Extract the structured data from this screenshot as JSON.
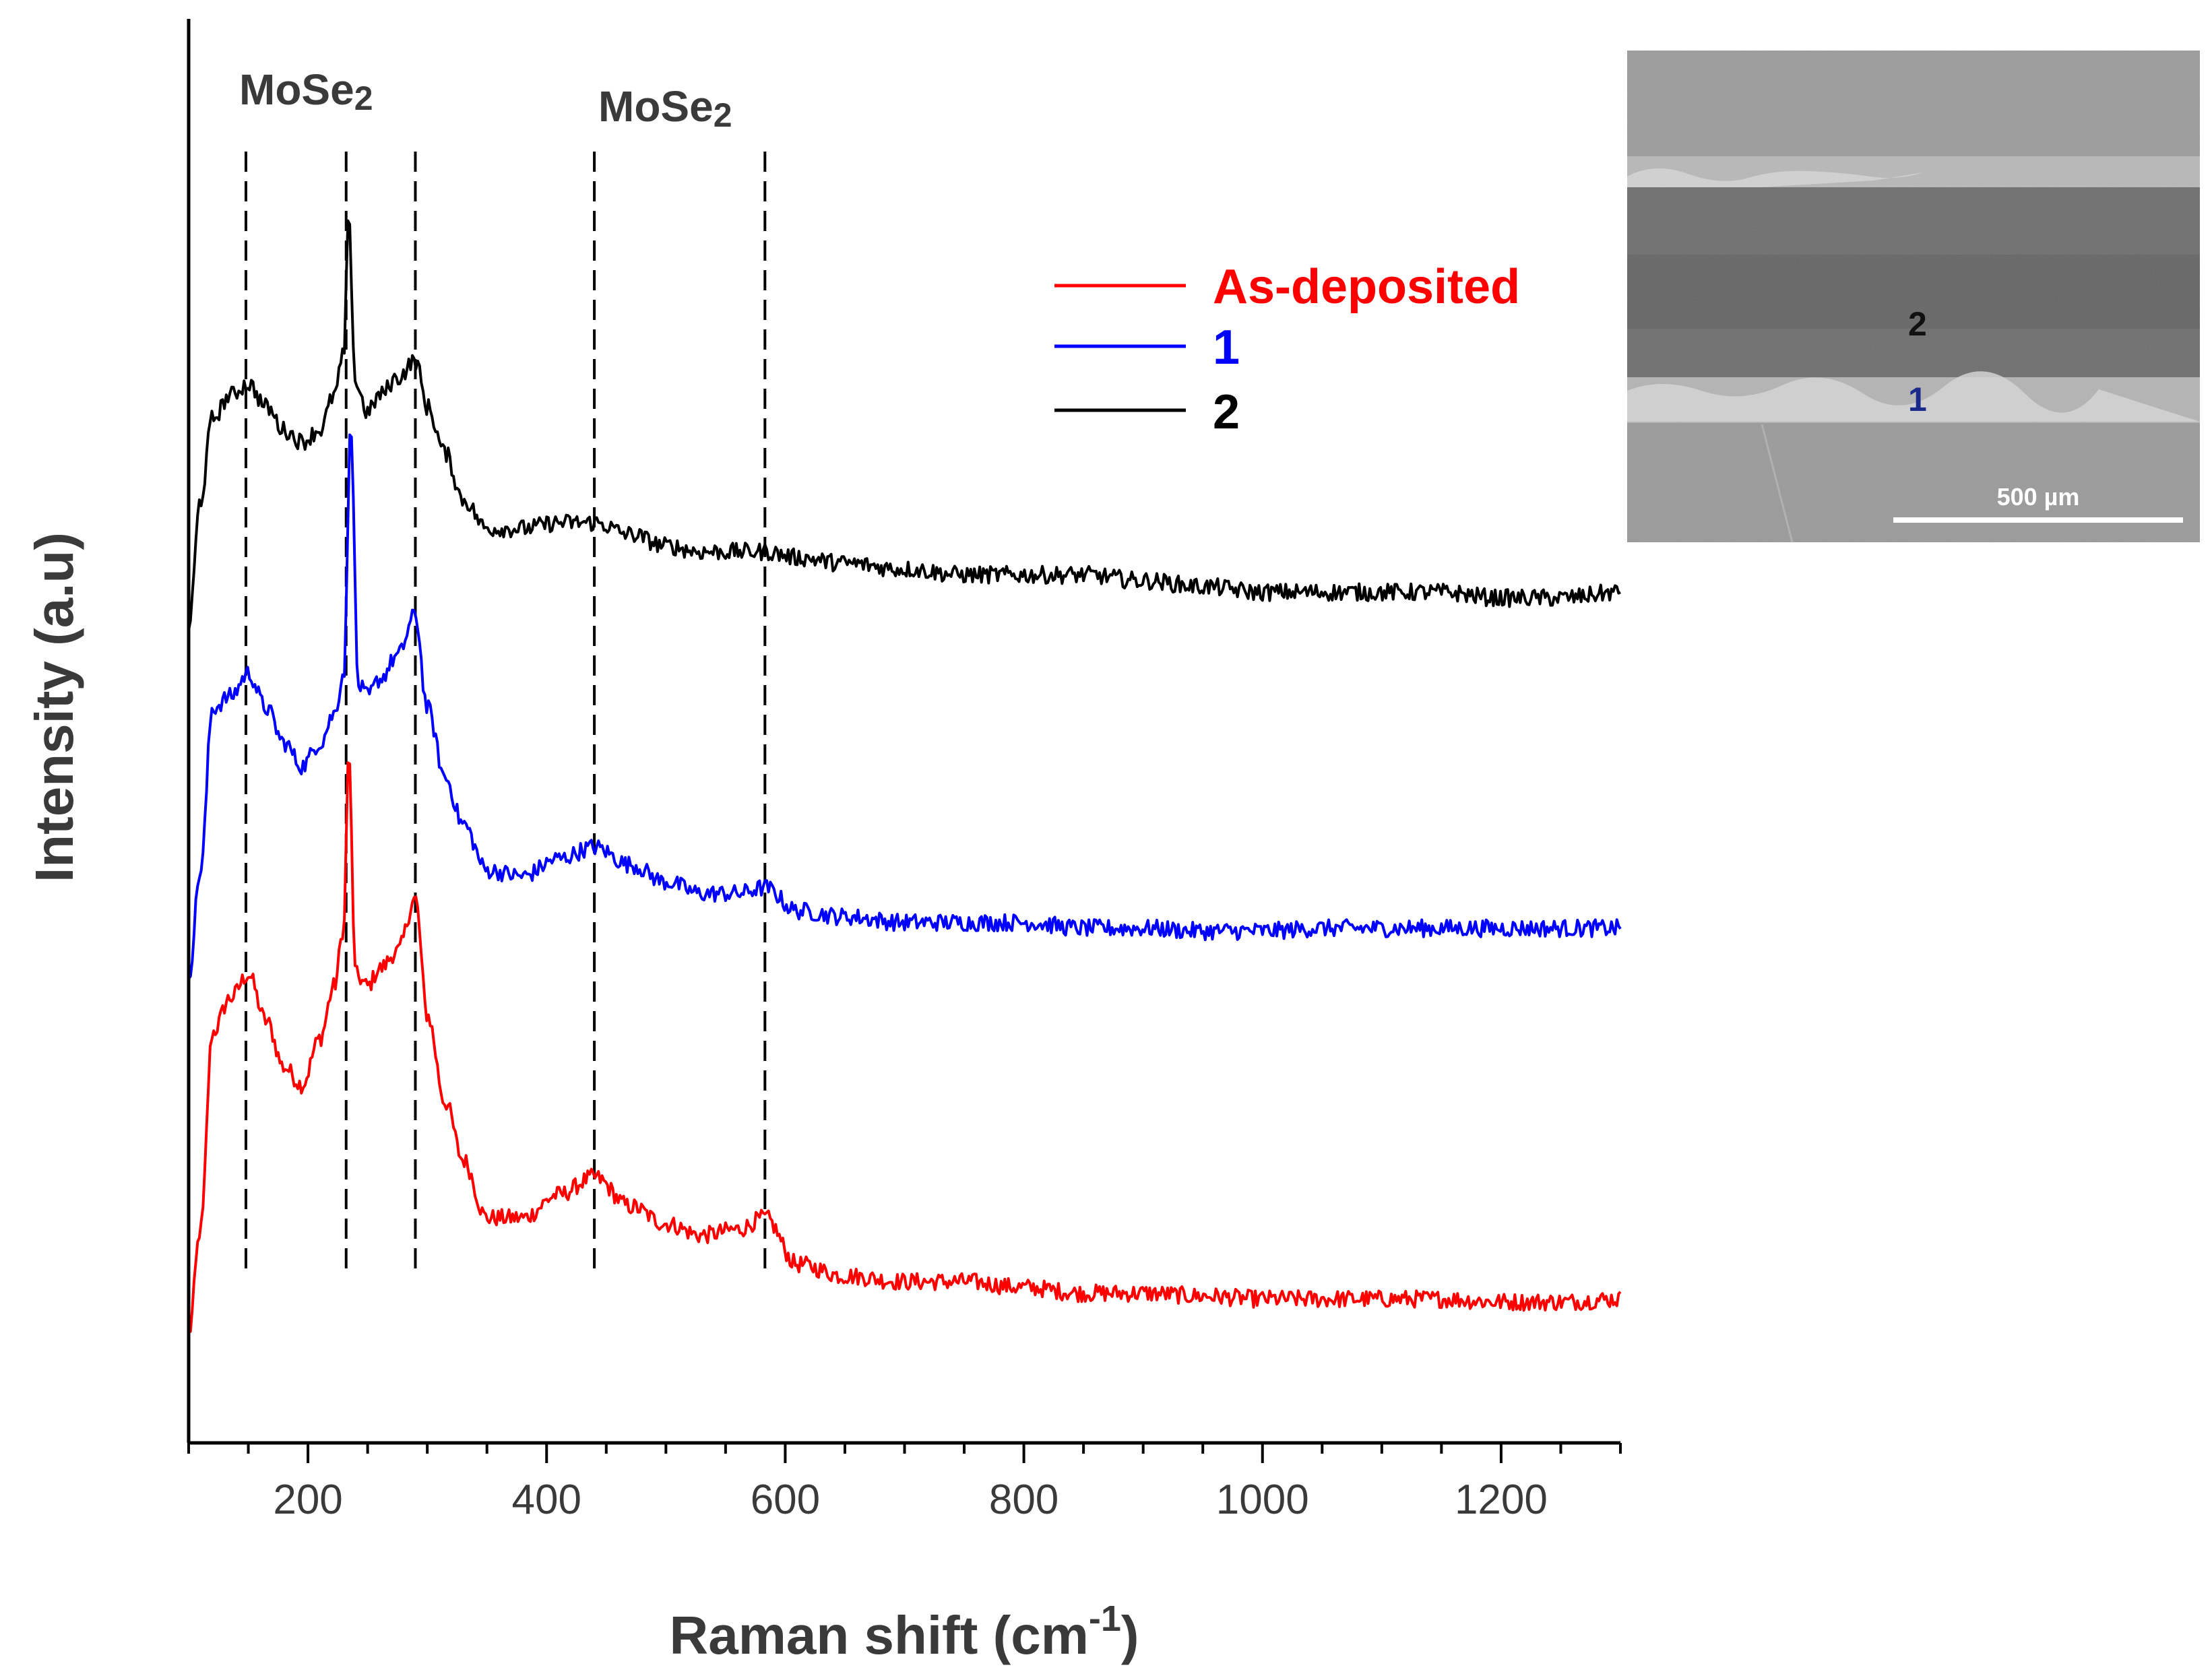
{
  "chart_data": {
    "type": "line",
    "title": "",
    "xlabel": "Raman shift",
    "xlabel_unit_base": "cm",
    "xlabel_unit_exp": "-1",
    "ylabel": "Intensity (a.u)",
    "xlim": [
      100,
      1300
    ],
    "x_ticks": [
      200,
      400,
      600,
      800,
      1000,
      1200
    ],
    "y_ticks": [],
    "grid": false,
    "legend_position": "upper-middle-right",
    "peak_lines": [
      148,
      232,
      290,
      440,
      583
    ],
    "peak_labels": [
      {
        "text": "MoSe",
        "sub": "2",
        "x": 200
      },
      {
        "text": "MoSe",
        "sub": "2",
        "x": 480
      }
    ],
    "series": [
      {
        "name": "As-deposited",
        "color": "#ff0000",
        "offset": 0,
        "x": [
          100,
          110,
          120,
          135,
          150,
          165,
          180,
          195,
          210,
          222,
          230,
          234,
          240,
          250,
          260,
          275,
          290,
          300,
          315,
          330,
          350,
          380,
          410,
          440,
          470,
          500,
          530,
          560,
          583,
          610,
          650,
          700,
          750,
          800,
          850,
          900,
          950,
          1000,
          1050,
          1100,
          1150,
          1200,
          1250,
          1300
        ],
        "values": [
          0.0,
          0.18,
          0.52,
          0.58,
          0.62,
          0.54,
          0.46,
          0.43,
          0.51,
          0.6,
          0.7,
          1.0,
          0.62,
          0.6,
          0.63,
          0.66,
          0.75,
          0.55,
          0.4,
          0.3,
          0.2,
          0.2,
          0.24,
          0.27,
          0.22,
          0.19,
          0.17,
          0.18,
          0.2,
          0.12,
          0.1,
          0.09,
          0.09,
          0.08,
          0.07,
          0.07,
          0.065,
          0.06,
          0.06,
          0.06,
          0.06,
          0.055,
          0.055,
          0.06
        ]
      },
      {
        "name": "1",
        "color": "#0000ff",
        "offset": 0.62,
        "x": [
          100,
          110,
          120,
          135,
          150,
          165,
          180,
          195,
          210,
          222,
          230,
          236,
          242,
          250,
          260,
          275,
          290,
          300,
          315,
          330,
          350,
          380,
          410,
          440,
          470,
          500,
          530,
          560,
          583,
          610,
          650,
          700,
          750,
          800,
          850,
          900,
          950,
          1000,
          1050,
          1100,
          1150,
          1200,
          1250,
          1300
        ],
        "values": [
          0.0,
          0.18,
          0.46,
          0.48,
          0.52,
          0.46,
          0.4,
          0.36,
          0.4,
          0.45,
          0.52,
          0.95,
          0.5,
          0.48,
          0.51,
          0.55,
          0.62,
          0.46,
          0.34,
          0.26,
          0.18,
          0.17,
          0.2,
          0.22,
          0.19,
          0.16,
          0.14,
          0.14,
          0.15,
          0.11,
          0.1,
          0.09,
          0.09,
          0.09,
          0.08,
          0.08,
          0.075,
          0.075,
          0.08,
          0.08,
          0.08,
          0.08,
          0.08,
          0.08
        ]
      },
      {
        "name": "2",
        "color": "#000000",
        "offset": 1.22,
        "x": [
          100,
          110,
          120,
          135,
          150,
          165,
          180,
          195,
          210,
          222,
          230,
          234,
          240,
          250,
          260,
          275,
          290,
          300,
          315,
          330,
          350,
          380,
          410,
          440,
          470,
          500,
          530,
          560,
          583,
          610,
          650,
          700,
          750,
          800,
          850,
          900,
          950,
          1000,
          1050,
          1100,
          1150,
          1200,
          1250,
          1300
        ],
        "values": [
          0.0,
          0.22,
          0.36,
          0.4,
          0.42,
          0.38,
          0.34,
          0.32,
          0.34,
          0.4,
          0.47,
          0.7,
          0.42,
          0.37,
          0.4,
          0.43,
          0.46,
          0.38,
          0.3,
          0.22,
          0.17,
          0.17,
          0.18,
          0.18,
          0.16,
          0.14,
          0.13,
          0.13,
          0.13,
          0.12,
          0.11,
          0.1,
          0.09,
          0.09,
          0.09,
          0.08,
          0.07,
          0.06,
          0.06,
          0.06,
          0.06,
          0.05,
          0.05,
          0.06
        ]
      }
    ],
    "inset": {
      "labels": [
        "2",
        "1"
      ],
      "label_colors": [
        "#111111",
        "#1a2a8a"
      ],
      "scale_bar_label": "500 µm"
    }
  }
}
